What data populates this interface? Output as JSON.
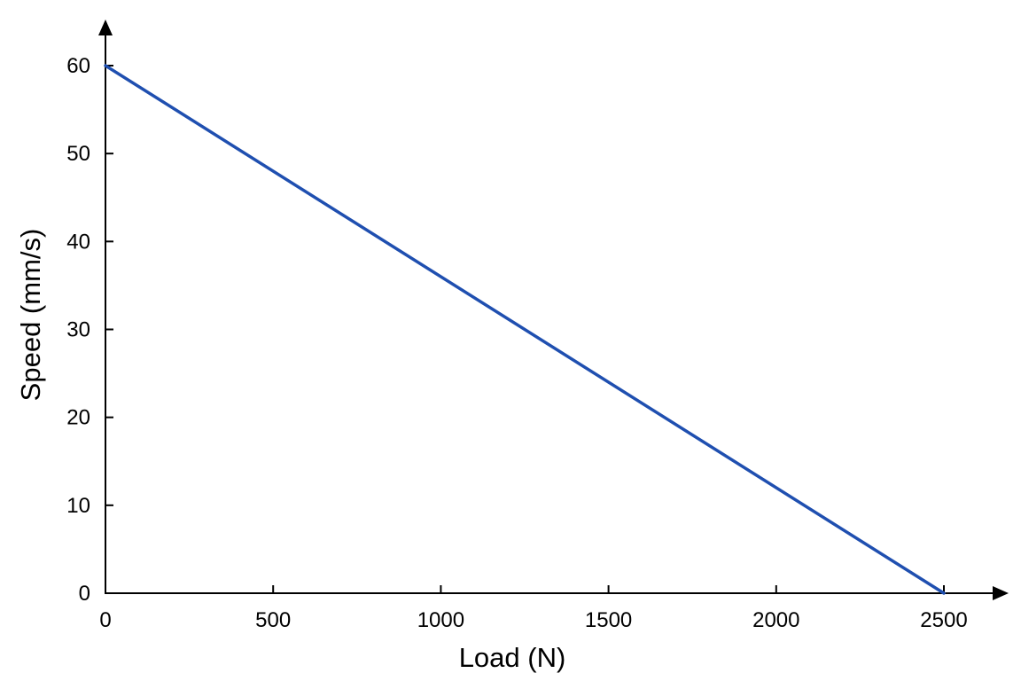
{
  "chart_data": {
    "type": "line",
    "title": "",
    "xlabel": "Load (N)",
    "ylabel": "Speed (mm/s)",
    "xlim": [
      0,
      2500
    ],
    "ylim": [
      0,
      60
    ],
    "x_ticks": [
      0,
      500,
      1000,
      1500,
      2000,
      2500
    ],
    "y_ticks": [
      0,
      10,
      20,
      30,
      40,
      50,
      60
    ],
    "grid": false,
    "legend": "none",
    "series": [
      {
        "x": [
          0,
          2500
        ],
        "y": [
          60,
          0
        ],
        "color": "#1f4fb0"
      }
    ]
  }
}
